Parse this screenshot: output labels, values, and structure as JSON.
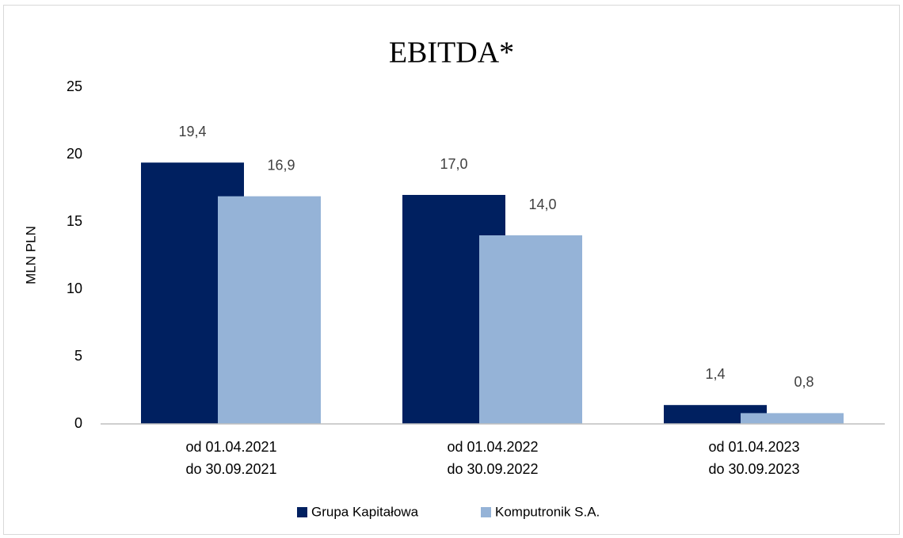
{
  "chart_data": {
    "type": "bar",
    "title": "EBITDA*",
    "y_label": "MLN PLN",
    "categories": [
      [
        "od 01.04.2021",
        "do 30.09.2021"
      ],
      [
        "od 01.04.2022",
        "do 30.09.2022"
      ],
      [
        "od 01.04.2023",
        "do 30.09.2023"
      ]
    ],
    "series": [
      {
        "name": "Grupa Kapitałowa",
        "color": "#002060",
        "values": [
          19.4,
          17.0,
          1.4
        ],
        "value_labels": [
          "19,4",
          "17,0",
          "1,4"
        ]
      },
      {
        "name": "Komputronik S.A.",
        "color": "#95b3d7",
        "values": [
          16.9,
          14.0,
          0.8
        ],
        "value_labels": [
          "16,9",
          "14,0",
          "0,8"
        ]
      }
    ],
    "ylim": [
      0,
      25
    ],
    "yticks": [
      0,
      5,
      10,
      15,
      20,
      25
    ],
    "grid": false,
    "legend": "bottom"
  }
}
